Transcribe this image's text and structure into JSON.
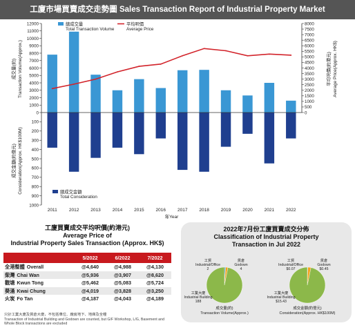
{
  "header": {
    "title": "工廈市場買賣成交走勢圖 Sales Transaction Report of Industrial Property Market"
  },
  "chart_data": {
    "type": "bar",
    "categories": [
      "2011",
      "2012",
      "2013",
      "2014",
      "2015",
      "2016",
      "2017",
      "2018",
      "2019",
      "2020",
      "2021",
      "2022"
    ],
    "xlabel": "年Year",
    "left_axis_top": {
      "label_cn": "成交量(約)",
      "label_en": "Transaction Volume(Approx.)",
      "range": [
        0,
        12000
      ],
      "ticks": [
        "0",
        "1000",
        "2000",
        "3000",
        "4000",
        "5000",
        "6000",
        "7000",
        "8000",
        "9000",
        "10000",
        "11000",
        "12000"
      ]
    },
    "left_axis_bottom": {
      "label_cn": "成交金額(約億元)",
      "label_en": "Consideration(Approx. HK$100M)",
      "range": [
        0,
        1000
      ],
      "ticks": [
        "0",
        "100",
        "200",
        "300",
        "400",
        "500",
        "600",
        "700",
        "800",
        "900",
        "1000"
      ]
    },
    "right_axis": {
      "label_cn": "平均呎價(約港元)",
      "label_en": "Average Price(Approx. HK$)",
      "range": [
        0,
        8000
      ],
      "ticks": [
        "0",
        "500",
        "1000",
        "1500",
        "2000",
        "2500",
        "3000",
        "3500",
        "4000",
        "4500",
        "5000",
        "5500",
        "6000",
        "6500",
        "7000",
        "7500",
        "8000"
      ]
    },
    "series": [
      {
        "name": "總成交量",
        "name_en": "Total Transaction Volume",
        "color": "#3a97d4",
        "values": [
          7800,
          10900,
          5100,
          3000,
          4500,
          3300,
          5700,
          5750,
          3000,
          2300,
          4000,
          1600
        ]
      },
      {
        "name": "平均呎價",
        "name_en": "Average Price",
        "color": "#d2232a",
        "values": [
          2150,
          2550,
          3000,
          3650,
          4150,
          4350,
          5100,
          5750,
          5550,
          5100,
          5250,
          5150
        ]
      },
      {
        "name": "總成交金額",
        "name_en": "Total Consideration",
        "color": "#1f3f8f",
        "values": [
          380,
          640,
          490,
          380,
          450,
          280,
          620,
          640,
          370,
          230,
          550,
          280
        ]
      }
    ]
  },
  "price_table": {
    "title_cn": "工廈買賣成交平均呎價(約港元)",
    "title_en1": "Average Price of",
    "title_en2": "Industrial Property Sales Transaction (Approx. HK$)",
    "columns": [
      "5/2022",
      "6/2022",
      "7/2022"
    ],
    "rows": [
      {
        "cn": "全港整體",
        "en": "Overall",
        "values": [
          "@4,640",
          "@4,988",
          "@4,130"
        ]
      },
      {
        "cn": "柴灣",
        "en": "Chai Wan",
        "values": [
          "@5,936",
          "@3,907",
          "@8,620"
        ]
      },
      {
        "cn": "觀塘",
        "en": "Kwun Tong",
        "values": [
          "@5,462",
          "@5,083",
          "@5,724"
        ]
      },
      {
        "cn": "葵涌",
        "en": "Kwai Chung",
        "values": [
          "@4,019",
          "@3,828",
          "@3,250"
        ]
      },
      {
        "cn": "火炭",
        "en": "Fo Tan",
        "values": [
          "@4,187",
          "@4,043",
          "@4,189"
        ]
      }
    ],
    "note_cn": "只計工業大廈及貨倉大廈，不包括車位、廠房地下、地庫及全幢",
    "note_en": "Transaction of Industrial Building and Godown are counted, but G/F Workshop, L/G, Basement and Whole Block transactions are excluded"
  },
  "pie_panel": {
    "title_cn": "2022年7月份工廈買賣成交分佈",
    "title_en1": "Classification of Industrial Property",
    "title_en2": "Transaction in Jul 2022",
    "pies": [
      {
        "caption_cn": "成交量(約)",
        "caption_en": "Transaction Volume(Approx.)",
        "slices": [
          {
            "cn": "工貿",
            "en": "Industrial/Office",
            "value": 2,
            "display": "2",
            "color": "#3a97d4"
          },
          {
            "cn": "貨倉",
            "en": "Godown",
            "value": 4,
            "display": "4",
            "color": "#f6a21c"
          },
          {
            "cn": "工業大廈",
            "en": "Industrial Building",
            "value": 188,
            "display": "188",
            "color": "#8cb84a"
          }
        ]
      },
      {
        "caption_cn": "成交金額(約億元)",
        "caption_en": "Consideration(Approx. HK$100M)",
        "slices": [
          {
            "cn": "工貿",
            "en": "Industrial/Office",
            "value": 0.07,
            "display": "$0.07",
            "color": "#3a97d4"
          },
          {
            "cn": "貨倉",
            "en": "Godown",
            "value": 0.45,
            "display": "$0.45",
            "color": "#f6a21c"
          },
          {
            "cn": "工業大廈",
            "en": "Industrial Building",
            "value": 15.43,
            "display": "$15.43",
            "color": "#8cb84a"
          }
        ]
      }
    ]
  }
}
